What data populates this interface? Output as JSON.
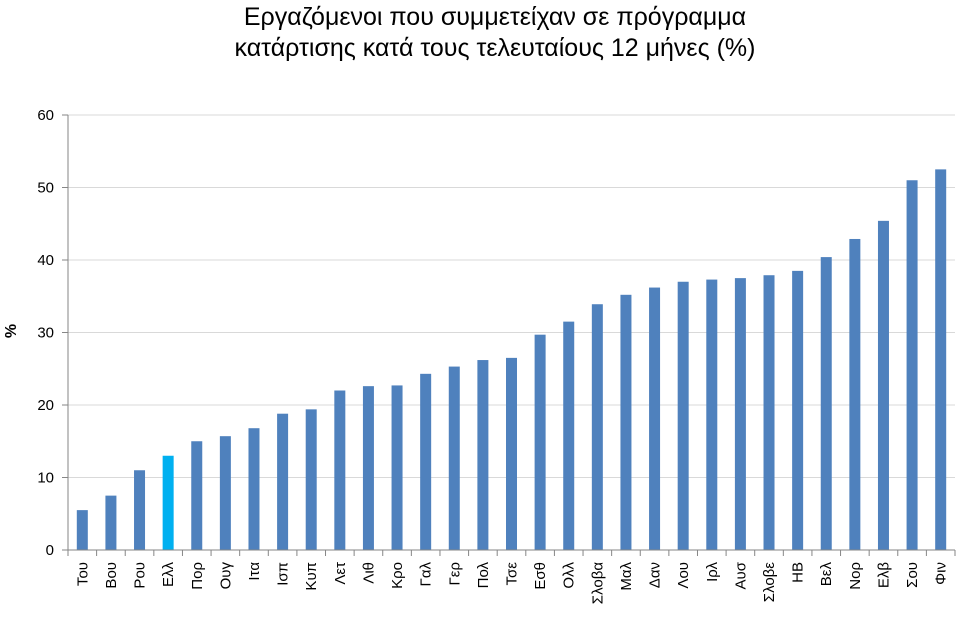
{
  "chart_data": {
    "type": "bar",
    "title": [
      "Εργαζόμενοι που συμμετείχαν σε πρόγραμμα",
      "κατάρτισης κατά τους τελευταίους 12 μήνες (%)"
    ],
    "xlabel": "",
    "ylabel": "%",
    "ylim": [
      0,
      60
    ],
    "yticks": [
      0,
      10,
      20,
      30,
      40,
      50,
      60
    ],
    "grid": true,
    "legend": "none",
    "colors": {
      "default": "#4f81bd",
      "highlight": "#00b0f0",
      "grid": "#d9d9d9",
      "axis": "#868686"
    },
    "highlight_category": "Ελλ",
    "categories": [
      "Του",
      "Βου",
      "Ρου",
      "Ελλ",
      "Πορ",
      "Ουγ",
      "Ιτα",
      "Ισπ",
      "Κυπ",
      "Λετ",
      "Λιθ",
      "Κρο",
      "Γαλ",
      "Γερ",
      "Πολ",
      "Τσε",
      "Εσθ",
      "Ολλ",
      "Σλοβα",
      "Μαλ",
      "Δαν",
      "Λου",
      "Ιρλ",
      "Αυσ",
      "Σλοβε",
      "ΗΒ",
      "Βελ",
      "Νορ",
      "Ελβ",
      "Σου",
      "Φιν"
    ],
    "values": [
      5.5,
      7.5,
      11,
      13,
      15,
      15.7,
      16.8,
      18.8,
      19.4,
      22,
      22.6,
      22.7,
      24.3,
      25.3,
      26.2,
      26.5,
      29.7,
      31.5,
      33.9,
      35.2,
      36.2,
      37,
      37.3,
      37.5,
      37.9,
      38.5,
      40.4,
      42.9,
      45.4,
      51,
      52.5
    ]
  }
}
